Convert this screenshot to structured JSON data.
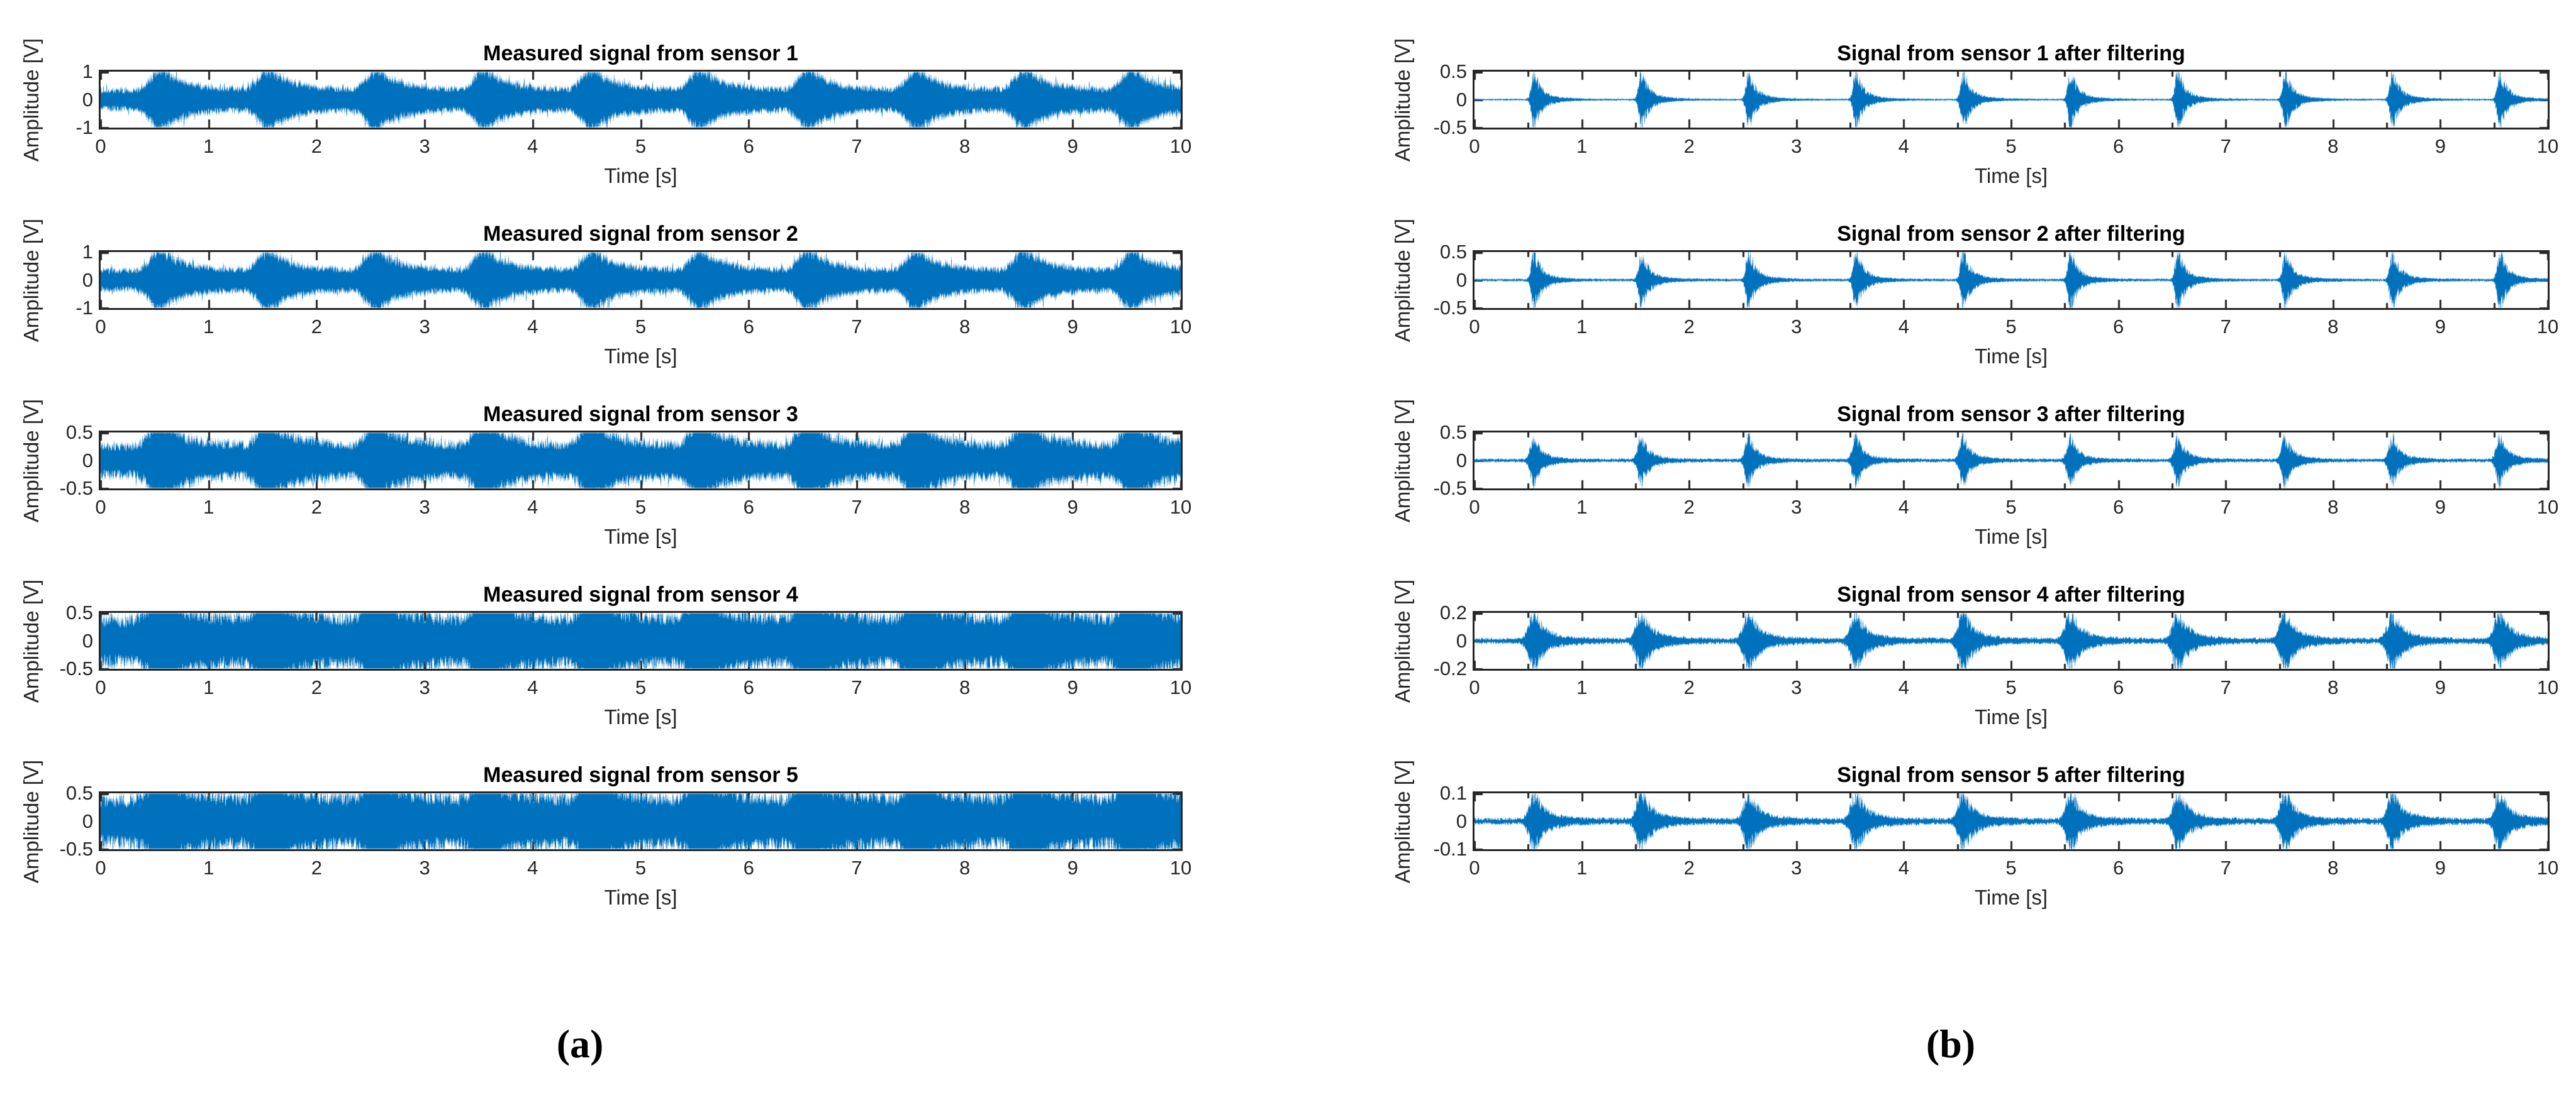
{
  "figure": {
    "background": "#ffffff",
    "line_color": "#0072BD",
    "axis_color": "#262626",
    "tick_label_color": "#262626",
    "title_color": "#000000",
    "captions": {
      "a": "(a)",
      "b": "(b)"
    }
  },
  "chart_data": [
    {
      "panel": "a",
      "row": 0,
      "type": "line",
      "title": "Measured signal from sensor 1",
      "xlabel": "Time [s]",
      "ylabel": "Amplitude [V]",
      "xlim": [
        0,
        10
      ],
      "ylim": [
        -1,
        1
      ],
      "xticks": [
        0,
        1,
        2,
        3,
        4,
        5,
        6,
        7,
        8,
        9,
        10
      ],
      "yticks": [
        1,
        0,
        -1
      ],
      "x_minor_step": null,
      "grid": false,
      "series": {
        "name": "sensor 1 measured",
        "kind": "measured",
        "noise_level": 0.35,
        "burst_peak": 0.8,
        "burst_period_s": 1.0,
        "burst_times": [
          0.55,
          1.55,
          2.55,
          3.55,
          4.55,
          5.55,
          6.55,
          7.55,
          8.55,
          9.55
        ],
        "burst_attack_s": 0.09,
        "burst_decay_s": 0.17
      }
    },
    {
      "panel": "a",
      "row": 1,
      "type": "line",
      "title": "Measured signal from sensor 2",
      "xlabel": "Time [s]",
      "ylabel": "Amplitude [V]",
      "xlim": [
        0,
        10
      ],
      "ylim": [
        -1,
        1
      ],
      "xticks": [
        0,
        1,
        2,
        3,
        4,
        5,
        6,
        7,
        8,
        9,
        10
      ],
      "yticks": [
        1,
        0,
        -1
      ],
      "x_minor_step": null,
      "grid": false,
      "series": {
        "name": "sensor 2 measured",
        "kind": "measured",
        "noise_level": 0.35,
        "burst_peak": 0.78,
        "burst_period_s": 1.0,
        "burst_times": [
          0.55,
          1.55,
          2.55,
          3.55,
          4.55,
          5.55,
          6.55,
          7.55,
          8.55,
          9.55
        ],
        "burst_attack_s": 0.09,
        "burst_decay_s": 0.17
      }
    },
    {
      "panel": "a",
      "row": 2,
      "type": "line",
      "title": "Measured signal from sensor 3",
      "xlabel": "Time [s]",
      "ylabel": "Amplitude [V]",
      "xlim": [
        0,
        10
      ],
      "ylim": [
        -0.5,
        0.5
      ],
      "xticks": [
        0,
        1,
        2,
        3,
        4,
        5,
        6,
        7,
        8,
        9,
        10
      ],
      "yticks": [
        0.5,
        0,
        -0.5
      ],
      "x_minor_step": null,
      "grid": false,
      "series": {
        "name": "sensor 3 measured",
        "kind": "measured",
        "noise_level": 0.27,
        "burst_peak": 0.48,
        "burst_period_s": 1.0,
        "burst_times": [
          0.55,
          1.55,
          2.55,
          3.55,
          4.55,
          5.55,
          6.55,
          7.55,
          8.55,
          9.55
        ],
        "burst_attack_s": 0.09,
        "burst_decay_s": 0.17
      }
    },
    {
      "panel": "a",
      "row": 3,
      "type": "line",
      "title": "Measured signal from sensor 4",
      "xlabel": "Time [s]",
      "ylabel": "Amplitude [V]",
      "xlim": [
        0,
        10
      ],
      "ylim": [
        -0.5,
        0.5
      ],
      "xticks": [
        0,
        1,
        2,
        3,
        4,
        5,
        6,
        7,
        8,
        9,
        10
      ],
      "yticks": [
        0.5,
        0,
        -0.5
      ],
      "x_minor_step": null,
      "grid": false,
      "series": {
        "name": "sensor 4 measured",
        "kind": "measured",
        "noise_level": 0.4,
        "burst_peak": 0.5,
        "burst_period_s": 1.0,
        "burst_times": [
          0.55,
          1.55,
          2.55,
          3.55,
          4.55,
          5.55,
          6.55,
          7.55,
          8.55,
          9.55
        ],
        "burst_attack_s": 0.09,
        "burst_decay_s": 0.17
      }
    },
    {
      "panel": "a",
      "row": 4,
      "type": "line",
      "title": "Measured signal from sensor 5",
      "xlabel": "Time [s]",
      "ylabel": "Amplitude [V]",
      "xlim": [
        0,
        10
      ],
      "ylim": [
        -0.5,
        0.5
      ],
      "xticks": [
        0,
        1,
        2,
        3,
        4,
        5,
        6,
        7,
        8,
        9,
        10
      ],
      "yticks": [
        0.5,
        0,
        -0.5
      ],
      "x_minor_step": null,
      "grid": false,
      "series": {
        "name": "sensor 5 measured",
        "kind": "measured",
        "noise_level": 0.41,
        "burst_peak": 0.46,
        "burst_period_s": 1.0,
        "burst_times": [
          0.55,
          1.55,
          2.55,
          3.55,
          4.55,
          5.55,
          6.55,
          7.55,
          8.55,
          9.55
        ],
        "burst_attack_s": 0.09,
        "burst_decay_s": 0.17
      }
    },
    {
      "panel": "b",
      "row": 0,
      "type": "line",
      "title": "Signal from sensor 1 after filtering",
      "xlabel": "Time [s]",
      "ylabel": "Amplitude [V]",
      "xlim": [
        0,
        10
      ],
      "ylim": [
        -0.5,
        0.5
      ],
      "xticks": [
        0,
        1,
        2,
        3,
        4,
        5,
        6,
        7,
        8,
        9,
        10
      ],
      "yticks": [
        0.5,
        0,
        -0.5
      ],
      "x_minor_step": 0.5,
      "grid": false,
      "series": {
        "name": "sensor 1 filtered",
        "kind": "filtered",
        "noise_level": 0.012,
        "burst_peak": 0.52,
        "burst_period_s": 1.0,
        "burst_times": [
          0.55,
          1.55,
          2.55,
          3.55,
          4.55,
          5.55,
          6.55,
          7.55,
          8.55,
          9.55
        ],
        "burst_attack_s": 0.022,
        "burst_decay_s": 0.06
      }
    },
    {
      "panel": "b",
      "row": 1,
      "type": "line",
      "title": "Signal from sensor 2 after filtering",
      "xlabel": "Time [s]",
      "ylabel": "Amplitude [V]",
      "xlim": [
        0,
        10
      ],
      "ylim": [
        -0.5,
        0.5
      ],
      "xticks": [
        0,
        1,
        2,
        3,
        4,
        5,
        6,
        7,
        8,
        9,
        10
      ],
      "yticks": [
        0.5,
        0,
        -0.5
      ],
      "x_minor_step": 0.5,
      "grid": false,
      "series": {
        "name": "sensor 2 filtered",
        "kind": "filtered",
        "noise_level": 0.018,
        "burst_peak": 0.52,
        "burst_period_s": 1.0,
        "burst_times": [
          0.55,
          1.55,
          2.55,
          3.55,
          4.55,
          5.55,
          6.55,
          7.55,
          8.55,
          9.55
        ],
        "burst_attack_s": 0.022,
        "burst_decay_s": 0.06
      }
    },
    {
      "panel": "b",
      "row": 2,
      "type": "line",
      "title": "Signal from sensor 3 after filtering",
      "xlabel": "Time [s]",
      "ylabel": "Amplitude [V]",
      "xlim": [
        0,
        10
      ],
      "ylim": [
        -0.5,
        0.5
      ],
      "xticks": [
        0,
        1,
        2,
        3,
        4,
        5,
        6,
        7,
        8,
        9,
        10
      ],
      "yticks": [
        0.5,
        0,
        -0.5
      ],
      "x_minor_step": 0.5,
      "grid": false,
      "series": {
        "name": "sensor 3 filtered",
        "kind": "filtered",
        "noise_level": 0.025,
        "burst_peak": 0.43,
        "burst_period_s": 1.0,
        "burst_times": [
          0.55,
          1.55,
          2.55,
          3.55,
          4.55,
          5.55,
          6.55,
          7.55,
          8.55,
          9.55
        ],
        "burst_attack_s": 0.03,
        "burst_decay_s": 0.06
      }
    },
    {
      "panel": "b",
      "row": 3,
      "type": "line",
      "title": "Signal from sensor 4 after filtering",
      "xlabel": "Time [s]",
      "ylabel": "Amplitude [V]",
      "xlim": [
        0,
        10
      ],
      "ylim": [
        -0.2,
        0.2
      ],
      "xticks": [
        0,
        1,
        2,
        3,
        4,
        5,
        6,
        7,
        8,
        9,
        10
      ],
      "yticks": [
        0.2,
        0,
        -0.2
      ],
      "x_minor_step": 0.5,
      "grid": false,
      "series": {
        "name": "sensor 4 filtered",
        "kind": "filtered",
        "noise_level": 0.016,
        "burst_peak": 0.2,
        "burst_period_s": 1.0,
        "burst_times": [
          0.55,
          1.55,
          2.55,
          3.55,
          4.55,
          5.55,
          6.55,
          7.55,
          8.55,
          9.55
        ],
        "burst_attack_s": 0.045,
        "burst_decay_s": 0.085
      }
    },
    {
      "panel": "b",
      "row": 4,
      "type": "line",
      "title": "Signal from sensor 5 after filtering",
      "xlabel": "Time [s]",
      "ylabel": "Amplitude [V]",
      "xlim": [
        0,
        10
      ],
      "ylim": [
        -0.1,
        0.1
      ],
      "xticks": [
        0,
        1,
        2,
        3,
        4,
        5,
        6,
        7,
        8,
        9,
        10
      ],
      "yticks": [
        0.1,
        0,
        -0.1
      ],
      "x_minor_step": 0.5,
      "grid": false,
      "series": {
        "name": "sensor 5 filtered",
        "kind": "filtered",
        "noise_level": 0.009,
        "burst_peak": 0.105,
        "burst_period_s": 1.0,
        "burst_times": [
          0.55,
          1.55,
          2.55,
          3.55,
          4.55,
          5.55,
          6.55,
          7.55,
          8.55,
          9.55
        ],
        "burst_attack_s": 0.04,
        "burst_decay_s": 0.08
      }
    }
  ]
}
